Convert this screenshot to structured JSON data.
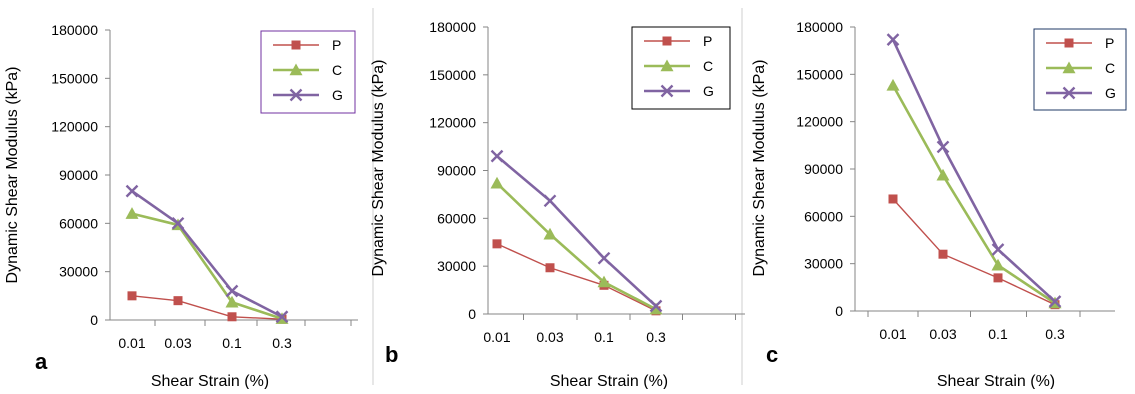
{
  "panels": [
    {
      "letter": "a",
      "chart_data": {
        "type": "line",
        "categories": [
          "0.01",
          "0.03",
          "0.1",
          "0.3"
        ],
        "xlabel": "Shear Strain (%)",
        "ylabel": "Dynamic Shear Modulus (kPa)",
        "ylim": [
          0,
          180000
        ],
        "yticks": [
          "0",
          "30000",
          "60000",
          "90000",
          "120000",
          "150000",
          "180000"
        ],
        "grid": false,
        "legend_position": "top-right",
        "series": [
          {
            "name": "P",
            "values": [
              15000,
              12000,
              2000,
              500
            ]
          },
          {
            "name": "C",
            "values": [
              66000,
              59000,
              11000,
              800
            ]
          },
          {
            "name": "G",
            "values": [
              80000,
              60000,
              18000,
              2000
            ]
          }
        ]
      }
    },
    {
      "letter": "b",
      "chart_data": {
        "type": "line",
        "categories": [
          "0.01",
          "0.03",
          "0.1",
          "0.3"
        ],
        "xlabel": "Shear Strain (%)",
        "ylabel": "Dynamic Shear Modulus (kPa)",
        "ylim": [
          0,
          180000
        ],
        "yticks": [
          "0",
          "30000",
          "60000",
          "90000",
          "120000",
          "150000",
          "180000"
        ],
        "grid": false,
        "legend_position": "top-right",
        "series": [
          {
            "name": "P",
            "values": [
              44000,
              29000,
              18000,
              2000
            ]
          },
          {
            "name": "C",
            "values": [
              82000,
              50000,
              20000,
              3000
            ]
          },
          {
            "name": "G",
            "values": [
              99000,
              71000,
              35000,
              5000
            ]
          }
        ]
      }
    },
    {
      "letter": "c",
      "chart_data": {
        "type": "line",
        "categories": [
          "0.01",
          "0.03",
          "0.1",
          "0.3"
        ],
        "xlabel": "Shear Strain (%)",
        "ylabel": "Dynamic Shear Modulus (kPa)",
        "ylim": [
          0,
          180000
        ],
        "yticks": [
          "0",
          "30000",
          "60000",
          "90000",
          "120000",
          "150000",
          "180000"
        ],
        "grid": false,
        "legend_position": "top-right",
        "series": [
          {
            "name": "P",
            "values": [
              71000,
              36000,
              21000,
              4000
            ]
          },
          {
            "name": "C",
            "values": [
              143000,
              86000,
              29000,
              5000
            ]
          },
          {
            "name": "G",
            "values": [
              172000,
              104000,
              39000,
              6000
            ]
          }
        ]
      }
    }
  ],
  "series_colors": {
    "P": "#c0504d",
    "C": "#9bbb59",
    "G": "#8064a2"
  },
  "series_markers": {
    "P": "square",
    "C": "triangle",
    "G": "cross"
  },
  "legend_border_colors": [
    "#7030a0",
    "#000000",
    "#1f3864"
  ]
}
